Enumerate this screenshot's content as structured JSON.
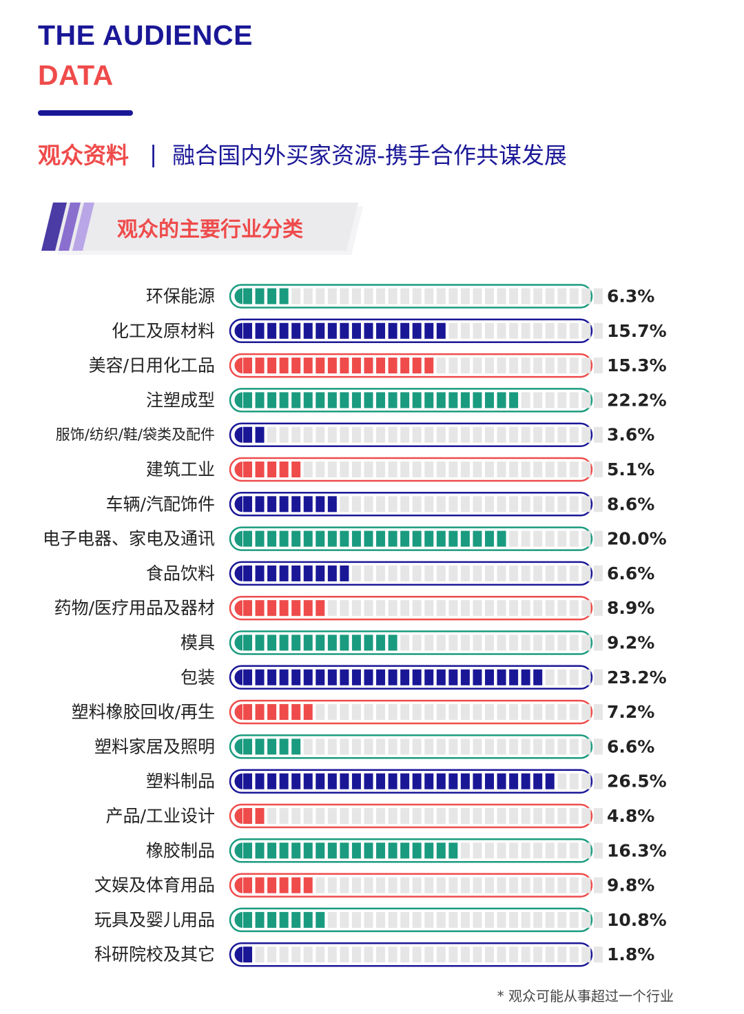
{
  "header": {
    "title_line1": "THE AUDIENCE",
    "title_line2": "DATA",
    "subtitle_left": "观众资料",
    "subtitle_separator": "|",
    "subtitle_right": "融合国内外买家资源-携手合作共谋发展"
  },
  "section": {
    "title": "观众的主要行业分类"
  },
  "colors": {
    "navy": "#1a1797",
    "red": "#ef4b4b",
    "teal": "#1a9b7f",
    "track": "#e6e6e6"
  },
  "chart_data": {
    "type": "bar",
    "title": "观众的主要行业分类",
    "orientation": "horizontal",
    "segments_total": 30,
    "categories": [
      "环保能源",
      "化工及原材料",
      "美容/日用化工品",
      "注塑成型",
      "服饰/纺织/鞋/袋类及配件",
      "建筑工业",
      "车辆/汽配饰件",
      "电子电器、家电及通讯",
      "食品饮料",
      "药物/医疗用品及器材",
      "模具",
      "包装",
      "塑料橡胶回收/再生",
      "塑料家居及照明",
      "塑料制品",
      "产品/工业设计",
      "橡胶制品",
      "文娱及体育用品",
      "玩具及婴儿用品",
      "科研院校及其它"
    ],
    "values": [
      6.3,
      15.7,
      15.3,
      22.2,
      3.6,
      5.1,
      8.6,
      20.0,
      6.6,
      8.9,
      9.2,
      23.2,
      7.2,
      6.6,
      26.5,
      4.8,
      16.3,
      9.8,
      10.8,
      1.8
    ],
    "value_labels": [
      "6.3%",
      "15.7%",
      "15.3%",
      "22.2%",
      "3.6%",
      "5.1%",
      "8.6%",
      "20.0%",
      "6.6%",
      "8.9%",
      "9.2%",
      "23.2%",
      "7.2%",
      "6.6%",
      "26.5%",
      "4.8%",
      "16.3%",
      "9.8%",
      "10.8%",
      "1.8%"
    ],
    "filled_segments": [
      4,
      17,
      16,
      23,
      2,
      5,
      8,
      22,
      9,
      7,
      13,
      25,
      6,
      5,
      26,
      2,
      18,
      6,
      7,
      1
    ],
    "bar_colors": [
      "teal",
      "navy",
      "red",
      "teal",
      "navy",
      "red",
      "navy",
      "teal",
      "navy",
      "red",
      "teal",
      "navy",
      "red",
      "teal",
      "navy",
      "red",
      "teal",
      "red",
      "teal",
      "navy"
    ]
  },
  "footnote": "* 观众可能从事超过一个行业"
}
